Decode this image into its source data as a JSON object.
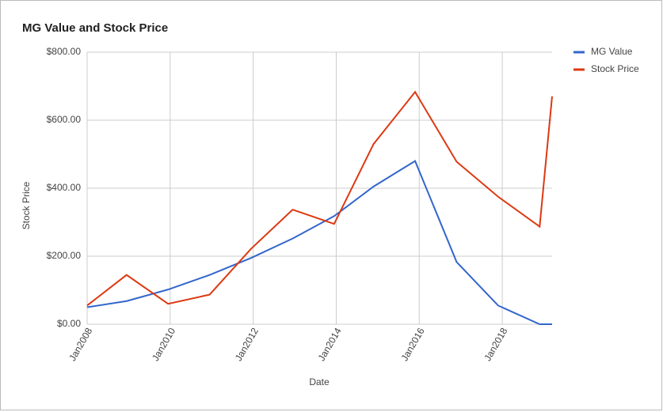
{
  "chart_data": {
    "type": "line",
    "title": "MG Value and Stock Price",
    "x_label": "Date",
    "y_label": "Stock Price",
    "x": [
      2008.0,
      2008.95,
      2009.95,
      2010.95,
      2011.95,
      2012.95,
      2013.95,
      2014.9,
      2015.9,
      2016.9,
      2017.9,
      2018.9,
      2019.2
    ],
    "series": [
      {
        "name": "MG Value",
        "color": "#3366cc",
        "values": [
          50,
          68,
          102,
          145,
          195,
          252,
          318,
          405,
          480,
          183,
          55,
          0,
          0
        ]
      },
      {
        "name": "Stock Price",
        "color": "#dc3912",
        "values": [
          55,
          145,
          60,
          87,
          222,
          337,
          295,
          530,
          683,
          478,
          375,
          287,
          670
        ]
      }
    ],
    "xlim": [
      2008,
      2019.2
    ],
    "xticks": [
      {
        "value": 2008,
        "label": "Jan2008"
      },
      {
        "value": 2010,
        "label": "Jan2010"
      },
      {
        "value": 2012,
        "label": "Jan2012"
      },
      {
        "value": 2014,
        "label": "Jan2014"
      },
      {
        "value": 2016,
        "label": "Jan2016"
      },
      {
        "value": 2018,
        "label": "Jan2018"
      }
    ],
    "ylim": [
      0,
      800
    ],
    "yticks": [
      {
        "value": 0,
        "label": "$0.00"
      },
      {
        "value": 200,
        "label": "$200.00"
      },
      {
        "value": 400,
        "label": "$400.00"
      },
      {
        "value": 600,
        "label": "$600.00"
      },
      {
        "value": 800,
        "label": "$800.00"
      }
    ],
    "grid": true,
    "legend": "right"
  }
}
